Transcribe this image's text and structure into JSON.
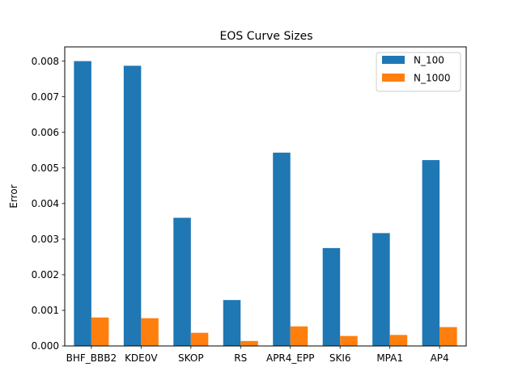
{
  "chart_data": {
    "type": "bar",
    "title": "EOS Curve Sizes",
    "xlabel": "",
    "ylabel": "Error",
    "categories": [
      "BHF_BBB2",
      "KDE0V",
      "SKOP",
      "RS",
      "APR4_EPP",
      "SKI6",
      "MPA1",
      "AP4"
    ],
    "series": [
      {
        "name": "N_100",
        "color": "#1f77b4",
        "values": [
          0.008,
          0.00787,
          0.0036,
          0.00129,
          0.00543,
          0.00275,
          0.00317,
          0.00522
        ]
      },
      {
        "name": "N_1000",
        "color": "#ff7f0e",
        "values": [
          0.0008,
          0.00078,
          0.00037,
          0.00014,
          0.00055,
          0.00028,
          0.00031,
          0.00053
        ]
      }
    ],
    "ylim": [
      0,
      0.0084
    ],
    "yticks": [
      "0.000",
      "0.001",
      "0.002",
      "0.003",
      "0.004",
      "0.005",
      "0.006",
      "0.007",
      "0.008"
    ],
    "grid": false,
    "legend_position": "top-right"
  }
}
